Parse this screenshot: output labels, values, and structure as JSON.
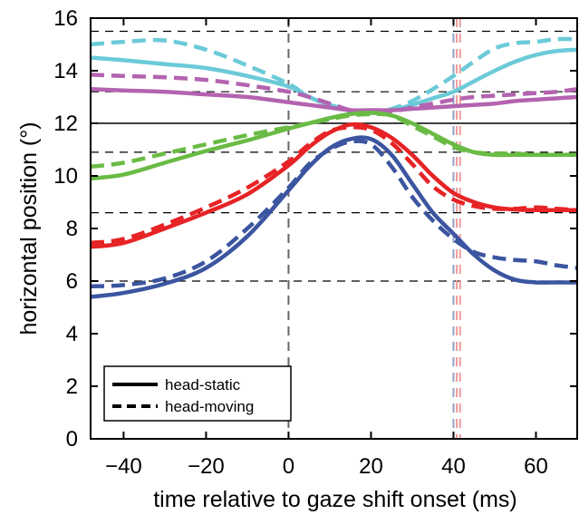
{
  "chart_data": {
    "type": "line",
    "xlabel": "time relative to gaze shift onset (ms)",
    "ylabel": "horizontal position (°)",
    "xlim": [
      -48,
      70
    ],
    "ylim": [
      0,
      16
    ],
    "xticks": [
      -40,
      -20,
      0,
      20,
      40,
      60
    ],
    "yticks": [
      0,
      2,
      4,
      6,
      8,
      10,
      12,
      14,
      16
    ],
    "xtick_labels": [
      "−40",
      "−20",
      "0",
      "20",
      "40",
      "60"
    ],
    "ytick_labels": [
      "0",
      "2",
      "4",
      "6",
      "8",
      "10",
      "12",
      "14",
      "16"
    ],
    "grid": false,
    "box": true,
    "legend": {
      "placement": "bottom-left",
      "entries": [
        {
          "label": "head-static",
          "style": "solid"
        },
        {
          "label": "head-moving",
          "style": "dashed"
        }
      ]
    },
    "reference_lines": {
      "horizontal_solid": [
        12
      ],
      "horizontal_dashed": [
        15.5,
        13.2,
        10.9,
        8.6,
        6.0
      ],
      "vertical_dashed": [
        {
          "x": 0,
          "color": "#666666"
        },
        {
          "x": 40,
          "color": "#8fa3c4"
        },
        {
          "x": 40.8,
          "color": "#ef9a9a"
        },
        {
          "x": 41.6,
          "color": "#ef9a9a"
        }
      ]
    },
    "x": [
      -48,
      -40,
      -30,
      -20,
      -10,
      0,
      5,
      10,
      15,
      20,
      25,
      30,
      35,
      40,
      45,
      50,
      55,
      60,
      65,
      70
    ],
    "series": [
      {
        "color": "#6bcad8",
        "style": "solid",
        "values": [
          14.5,
          14.4,
          14.25,
          14.1,
          13.8,
          13.4,
          13.0,
          12.7,
          12.5,
          12.4,
          12.5,
          12.7,
          12.95,
          13.2,
          13.6,
          14.0,
          14.35,
          14.6,
          14.75,
          14.8
        ]
      },
      {
        "color": "#6bcad8",
        "style": "dashed",
        "values": [
          15.0,
          15.1,
          15.15,
          14.8,
          14.2,
          13.5,
          13.0,
          12.7,
          12.45,
          12.4,
          12.55,
          12.85,
          13.3,
          13.8,
          14.35,
          14.85,
          15.05,
          15.1,
          15.2,
          15.2
        ]
      },
      {
        "color": "#b363b0",
        "style": "solid",
        "values": [
          13.3,
          13.25,
          13.2,
          13.1,
          13.0,
          12.8,
          12.7,
          12.6,
          12.5,
          12.5,
          12.5,
          12.55,
          12.6,
          12.65,
          12.7,
          12.75,
          12.85,
          12.9,
          12.95,
          13.0
        ]
      },
      {
        "color": "#b363b0",
        "style": "dashed",
        "values": [
          13.85,
          13.8,
          13.75,
          13.65,
          13.45,
          13.2,
          13.0,
          12.75,
          12.5,
          12.4,
          12.45,
          12.6,
          12.75,
          12.9,
          13.0,
          13.05,
          13.1,
          13.15,
          13.2,
          13.3
        ]
      },
      {
        "color": "#6abb45",
        "style": "solid",
        "values": [
          9.9,
          10.05,
          10.5,
          10.95,
          11.35,
          11.8,
          12.0,
          12.2,
          12.35,
          12.4,
          12.3,
          12.0,
          11.6,
          11.2,
          10.9,
          10.8,
          10.8,
          10.8,
          10.8,
          10.8
        ]
      },
      {
        "color": "#6abb45",
        "style": "dashed",
        "values": [
          10.35,
          10.5,
          10.85,
          11.2,
          11.55,
          11.85,
          12.0,
          12.15,
          12.3,
          12.35,
          12.3,
          11.9,
          11.5,
          11.1,
          10.9,
          10.85,
          10.85,
          10.8,
          10.8,
          10.8
        ]
      },
      {
        "color": "#e62325",
        "style": "solid",
        "values": [
          7.3,
          7.45,
          8.0,
          8.6,
          9.3,
          10.4,
          11.1,
          11.65,
          11.95,
          11.85,
          11.45,
          10.8,
          10.0,
          9.35,
          9.0,
          8.8,
          8.72,
          8.7,
          8.7,
          8.7
        ]
      },
      {
        "color": "#e62325",
        "style": "dashed",
        "values": [
          7.45,
          7.6,
          8.15,
          8.8,
          9.55,
          10.55,
          11.2,
          11.7,
          11.85,
          11.75,
          11.25,
          10.45,
          9.6,
          9.1,
          8.85,
          8.75,
          8.75,
          8.8,
          8.75,
          8.7
        ]
      },
      {
        "color": "#3b55a0",
        "style": "solid",
        "values": [
          5.4,
          5.55,
          5.9,
          6.5,
          7.7,
          9.45,
          10.35,
          11.05,
          11.4,
          11.4,
          10.8,
          9.7,
          8.6,
          7.8,
          7.0,
          6.4,
          6.05,
          5.95,
          5.95,
          5.95
        ]
      },
      {
        "color": "#3b55a0",
        "style": "dashed",
        "values": [
          5.8,
          5.85,
          6.1,
          6.75,
          8.0,
          9.55,
          10.45,
          11.0,
          11.3,
          11.2,
          10.35,
          9.2,
          8.3,
          7.6,
          7.1,
          6.9,
          6.8,
          6.75,
          6.6,
          6.5
        ]
      }
    ]
  }
}
